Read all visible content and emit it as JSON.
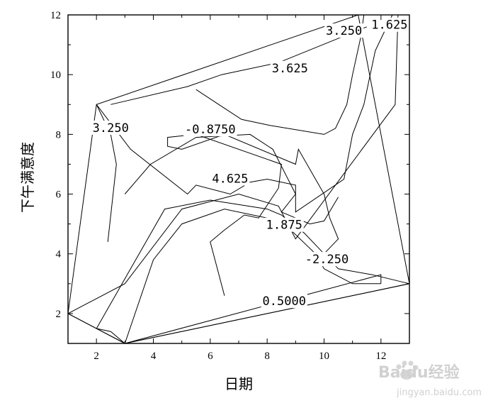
{
  "chart_data": {
    "type": "contour",
    "xlabel": "日期",
    "ylabel": "下午满意度",
    "xlim": [
      1,
      13
    ],
    "ylim": [
      1,
      12
    ],
    "x_ticks": [
      2,
      4,
      6,
      8,
      10,
      12
    ],
    "y_ticks": [
      2,
      4,
      6,
      8,
      10,
      12
    ],
    "x_minor_step": 1,
    "y_minor_step": 1,
    "grid": false,
    "contour_lines": [
      {
        "name": "boundary",
        "points": [
          [
            1,
            2
          ],
          [
            3,
            1
          ],
          [
            13,
            3
          ],
          [
            11.2,
            12
          ],
          [
            2,
            9
          ],
          [
            1,
            2
          ]
        ]
      },
      {
        "name": "c1",
        "points": [
          [
            3,
            1
          ],
          [
            13,
            3
          ]
        ]
      },
      {
        "name": "c2",
        "points": [
          [
            3,
            1
          ],
          [
            12,
            3.3
          ],
          [
            12,
            3
          ]
        ]
      },
      {
        "name": "c3",
        "points": [
          [
            1,
            2
          ],
          [
            3,
            1
          ]
        ]
      },
      {
        "name": "c4",
        "points": [
          [
            2,
            1.5
          ],
          [
            2.5,
            1.4
          ],
          [
            3,
            1
          ],
          [
            4,
            3.8
          ],
          [
            5,
            5
          ],
          [
            6.5,
            5.5
          ],
          [
            8.5,
            5.1
          ],
          [
            9.7,
            4
          ],
          [
            10,
            3.5
          ],
          [
            11,
            3
          ],
          [
            12,
            3
          ]
        ]
      },
      {
        "name": "c5",
        "points": [
          [
            2,
            1.5
          ],
          [
            3.5,
            4
          ],
          [
            4.4,
            5.5
          ],
          [
            6,
            5.8
          ],
          [
            8,
            5.5
          ],
          [
            8.5,
            5.3
          ],
          [
            9.3,
            4.7
          ],
          [
            9.8,
            4.2
          ],
          [
            10.5,
            3.5
          ],
          [
            11.7,
            3.3
          ],
          [
            13,
            3
          ]
        ]
      },
      {
        "name": "c6",
        "points": [
          [
            1,
            2
          ],
          [
            3,
            3
          ],
          [
            5,
            5.5
          ],
          [
            7,
            6
          ],
          [
            8.4,
            5.6
          ],
          [
            9,
            4.5
          ],
          [
            12.5,
            9
          ],
          [
            12.6,
            12
          ]
        ]
      },
      {
        "name": "c7",
        "points": [
          [
            6.5,
            2.6
          ],
          [
            6,
            4.4
          ],
          [
            6.5,
            4.8
          ],
          [
            7.2,
            5.3
          ],
          [
            7.7,
            5.2
          ],
          [
            8.4,
            6.2
          ],
          [
            8.5,
            7
          ],
          [
            5.5,
            8
          ],
          [
            4.5,
            7.9
          ],
          [
            4.5,
            7.6
          ],
          [
            5,
            7.5
          ],
          [
            6.5,
            8
          ],
          [
            9,
            7
          ],
          [
            9.1,
            7.5
          ],
          [
            10,
            6
          ],
          [
            10.2,
            5.2
          ],
          [
            10.5,
            4.5
          ],
          [
            10,
            4
          ]
        ]
      },
      {
        "name": "c8",
        "points": [
          [
            3,
            6
          ],
          [
            3.9,
            7
          ],
          [
            5.5,
            7.9
          ],
          [
            7.4,
            8
          ],
          [
            8.2,
            7.5
          ],
          [
            9,
            6
          ],
          [
            8.5,
            5.4
          ],
          [
            9.5,
            5
          ],
          [
            10,
            5.1
          ],
          [
            10.5,
            5.9
          ]
        ]
      },
      {
        "name": "c9",
        "points": [
          [
            2.4,
            4.4
          ],
          [
            2.7,
            7
          ],
          [
            2.5,
            8
          ],
          [
            2,
            9
          ],
          [
            3.2,
            7.5
          ],
          [
            5.2,
            6
          ],
          [
            5.5,
            6.3
          ],
          [
            6.7,
            6
          ],
          [
            7.4,
            6.4
          ],
          [
            8,
            6.5
          ],
          [
            9,
            6.3
          ],
          [
            9,
            5.4
          ],
          [
            10.7,
            6.5
          ],
          [
            11,
            8
          ],
          [
            11.4,
            9
          ],
          [
            11.8,
            10.8
          ],
          [
            12.4,
            12
          ]
        ]
      },
      {
        "name": "c10",
        "points": [
          [
            5.5,
            9.5
          ],
          [
            6.3,
            9
          ],
          [
            7.1,
            8.5
          ],
          [
            8.1,
            8.3
          ],
          [
            10,
            8
          ],
          [
            10.4,
            8.2
          ],
          [
            10.8,
            9
          ],
          [
            11,
            10
          ],
          [
            11.3,
            11.3
          ],
          [
            11.4,
            12
          ]
        ]
      },
      {
        "name": "c11",
        "points": [
          [
            2.5,
            9
          ],
          [
            5.2,
            9.6
          ],
          [
            6.4,
            10
          ],
          [
            8.4,
            10.4
          ],
          [
            11.5,
            11.6
          ]
        ]
      }
    ],
    "contour_labels": [
      {
        "text": "3.250",
        "x": 10.7,
        "y": 11.45
      },
      {
        "text": "1.625",
        "x": 12.3,
        "y": 11.65
      },
      {
        "text": "3.625",
        "x": 8.8,
        "y": 10.2
      },
      {
        "text": "3.250",
        "x": 2.5,
        "y": 8.2
      },
      {
        "text": "-0.8750",
        "x": 6.0,
        "y": 8.15
      },
      {
        "text": "4.625",
        "x": 6.7,
        "y": 6.5
      },
      {
        "text": "1.875",
        "x": 8.6,
        "y": 4.95
      },
      {
        "text": "-2.250",
        "x": 10.1,
        "y": 3.8
      },
      {
        "text": "0.5000",
        "x": 8.6,
        "y": 2.4
      }
    ]
  },
  "watermark": {
    "brand": "Baidu经验",
    "url": "jingyan.baidu.com"
  }
}
